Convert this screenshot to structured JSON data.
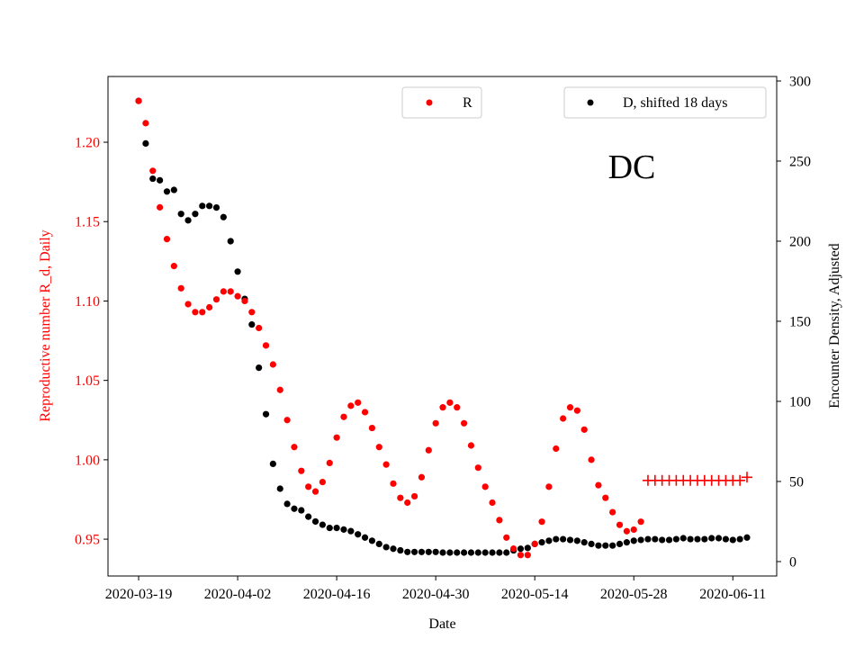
{
  "chart_data": {
    "type": "scatter",
    "title": "DC",
    "xlabel": "Date",
    "ylabel_left": "Reproductive number R_d, Daily",
    "ylabel_right": "Encounter Density, Adjusted",
    "x_start_date": "2020-03-19",
    "x_unit": "days since 2020-03-19",
    "xlim": [
      -4.33,
      90.2
    ],
    "ylim_left": [
      0.9268,
      1.2414
    ],
    "ylim_right": [
      -9,
      302.8
    ],
    "x_ticks": [
      0,
      14,
      28,
      42,
      56,
      70,
      84
    ],
    "x_tick_labels": [
      "2020-03-19",
      "2020-04-02",
      "2020-04-16",
      "2020-04-30",
      "2020-05-14",
      "2020-05-28",
      "2020-06-11"
    ],
    "y_left_ticks": [
      0.95,
      1.0,
      1.05,
      1.1,
      1.15,
      1.2
    ],
    "y_left_tick_labels": [
      "0.95",
      "1.00",
      "1.05",
      "1.10",
      "1.15",
      "1.20"
    ],
    "y_right_ticks": [
      0,
      50,
      100,
      150,
      200,
      250,
      300
    ],
    "y_right_tick_labels": [
      "0",
      "50",
      "100",
      "150",
      "200",
      "250",
      "300"
    ],
    "grid": false,
    "legend": [
      {
        "label": "R",
        "placement": "top-center",
        "color": "#ff0000"
      },
      {
        "label": "D, shifted 18 days",
        "placement": "top-right",
        "color": "#000000"
      }
    ],
    "series": [
      {
        "name": "R",
        "axis": "left",
        "marker": "dot",
        "color": "#ff0000",
        "x_start": 0,
        "values": [
          1.226,
          1.212,
          1.182,
          1.159,
          1.139,
          1.122,
          1.108,
          1.098,
          1.093,
          1.093,
          1.096,
          1.101,
          1.106,
          1.106,
          1.103,
          1.1,
          1.093,
          1.083,
          1.072,
          1.06,
          1.044,
          1.025,
          1.008,
          0.993,
          0.983,
          0.98,
          0.986,
          0.998,
          1.014,
          1.027,
          1.034,
          1.036,
          1.03,
          1.02,
          1.008,
          0.997,
          0.985,
          0.976,
          0.973,
          0.977,
          0.989,
          1.006,
          1.023,
          1.033,
          1.036,
          1.033,
          1.023,
          1.009,
          0.995,
          0.983,
          0.973,
          0.962,
          0.951,
          0.944,
          0.94,
          0.94,
          0.947,
          0.961,
          0.983,
          1.007,
          1.026,
          1.033,
          1.031,
          1.019,
          1.0,
          0.984,
          0.976,
          0.967,
          0.959,
          0.955,
          0.956,
          0.961
        ]
      },
      {
        "name": "R forecast",
        "axis": "left",
        "marker": "plus",
        "color": "#ff0000",
        "x_start": 72,
        "values": [
          0.987,
          0.987,
          0.987,
          0.987,
          0.987,
          0.987,
          0.987,
          0.987,
          0.987,
          0.987,
          0.987,
          0.987,
          0.987,
          0.987,
          0.989
        ]
      },
      {
        "name": "D, shifted 18 days",
        "axis": "right",
        "marker": "dot",
        "color": "#000000",
        "x_start": 0,
        "values": [
          287.6,
          261,
          239,
          238,
          231,
          232,
          217,
          213,
          217,
          222,
          222,
          221,
          215,
          200,
          181,
          164,
          148,
          121,
          92,
          61,
          45.5,
          36,
          33,
          32,
          28,
          25,
          23,
          21,
          21,
          20,
          19,
          17,
          15,
          13,
          11,
          9,
          8,
          7,
          6,
          6,
          6,
          6,
          6,
          5.6,
          5.6,
          5.6,
          5.6,
          5.6,
          5.6,
          5.6,
          5.6,
          5.6,
          5.6,
          7,
          8,
          8.5,
          11,
          12,
          13,
          14,
          14,
          13.5,
          13,
          12,
          11,
          10,
          10,
          10,
          11,
          12,
          13,
          13.5,
          14,
          14,
          13.5,
          13.5,
          14,
          14.6,
          14,
          14,
          14,
          14.6,
          14.6,
          14,
          13.5,
          14,
          15
        ]
      }
    ]
  }
}
